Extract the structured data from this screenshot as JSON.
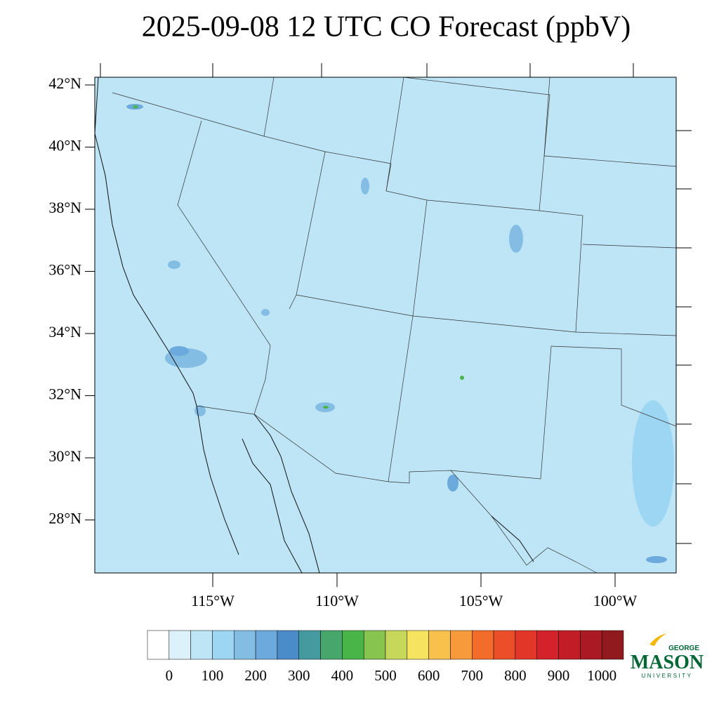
{
  "title": "2025-09-08 12 UTC CO Forecast (ppbV)",
  "map": {
    "lat_labels": [
      "42°N",
      "40°N",
      "38°N",
      "36°N",
      "34°N",
      "32°N",
      "30°N",
      "28°N"
    ],
    "lon_labels": [
      "115°W",
      "110°W",
      "105°W",
      "100°W"
    ],
    "background_color": "#bde5f6"
  },
  "colorbar": {
    "ticks": [
      0,
      100,
      200,
      300,
      400,
      500,
      600,
      700,
      800,
      900,
      1000
    ],
    "colors": [
      "#ffffff",
      "#ddf1fb",
      "#bde5f6",
      "#9dd6f3",
      "#84bde3",
      "#6ca9dc",
      "#4a8bca",
      "#459a9f",
      "#46a66c",
      "#49b548",
      "#86c34f",
      "#c6d75a",
      "#f6e35f",
      "#f7c14b",
      "#f79a3b",
      "#f46c2a",
      "#ed4e2a",
      "#e23628",
      "#d32229",
      "#c21c26",
      "#ab1a24",
      "#901a1e"
    ]
  },
  "logo": {
    "top": "GEORGE",
    "name": "MASON",
    "bottom": "UNIVERSITY"
  }
}
